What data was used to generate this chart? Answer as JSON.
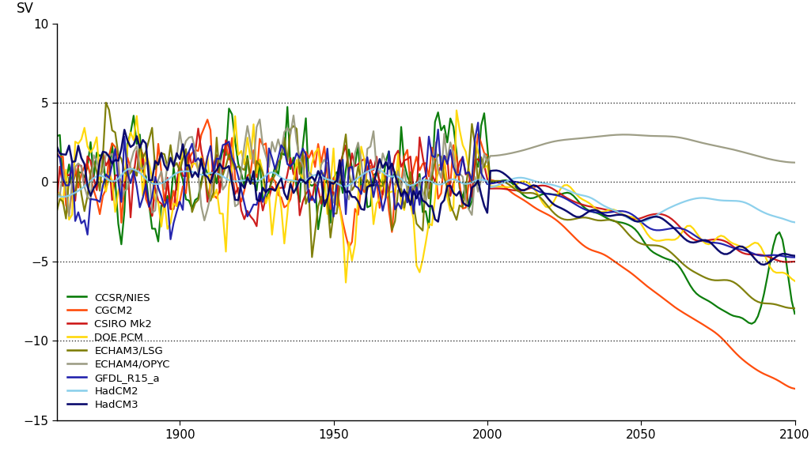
{
  "ylabel": "SV",
  "xlim": [
    1860,
    2100
  ],
  "ylim": [
    -15,
    10
  ],
  "yticks": [
    -15,
    -10,
    -5,
    0,
    5,
    10
  ],
  "xticks": [
    1900,
    1950,
    2000,
    2050,
    2100
  ],
  "hlines_dotted": [
    5,
    0,
    -5,
    -10
  ],
  "models": {
    "CCSR/NIES": {
      "color": "#007700",
      "lw": 1.6
    },
    "CGCM2": {
      "color": "#ff4400",
      "lw": 1.6
    },
    "CSIRO Mk2": {
      "color": "#cc1111",
      "lw": 1.6
    },
    "DOE PCM": {
      "color": "#ffd700",
      "lw": 1.6
    },
    "ECHAM3/LSG": {
      "color": "#7a7a00",
      "lw": 1.6
    },
    "ECHAM4/OPYC": {
      "color": "#999980",
      "lw": 1.6
    },
    "GFDL_R15_a": {
      "color": "#1a1aaa",
      "lw": 1.6
    },
    "HadCM2": {
      "color": "#87ceeb",
      "lw": 1.6
    },
    "HadCM3": {
      "color": "#000066",
      "lw": 1.8
    }
  }
}
